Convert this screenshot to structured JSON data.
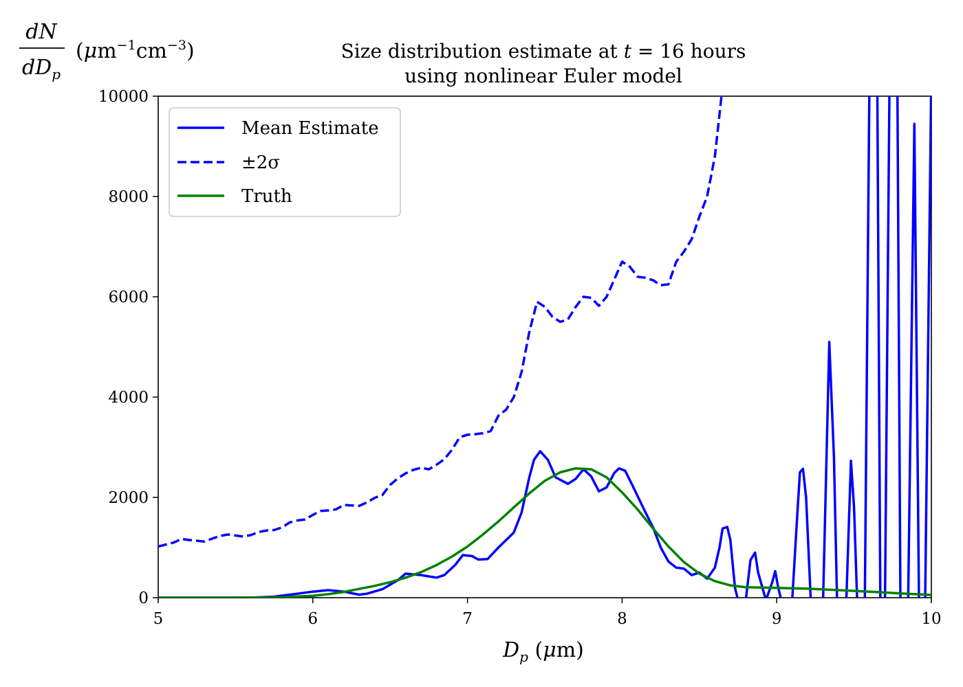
{
  "chart_data": {
    "type": "line",
    "title": "Size distribution estimate at t = 16 hours",
    "subtitle": "using nonlinear Euler model",
    "xlabel": "D_p (μm)",
    "ylabel": "dN/dD_p (μm⁻¹cm⁻³)",
    "xlim": [
      5,
      10
    ],
    "ylim": [
      0,
      10000
    ],
    "x_ticks": [
      5,
      6,
      7,
      8,
      9,
      10
    ],
    "y_ticks": [
      0,
      2000,
      4000,
      6000,
      8000,
      10000
    ],
    "grid": false,
    "legend_position": "top-left",
    "colors": {
      "mean": "#0000ff",
      "band": "#0000ff",
      "truth": "#008000"
    },
    "series": [
      {
        "name": "Mean Estimate",
        "style": "solid",
        "color": "#0000ff",
        "points": [
          [
            5.0,
            0
          ],
          [
            5.3,
            0
          ],
          [
            5.6,
            0
          ],
          [
            5.75,
            20
          ],
          [
            5.9,
            80
          ],
          [
            6.0,
            120
          ],
          [
            6.1,
            150
          ],
          [
            6.2,
            120
          ],
          [
            6.3,
            60
          ],
          [
            6.35,
            80
          ],
          [
            6.45,
            170
          ],
          [
            6.55,
            350
          ],
          [
            6.6,
            480
          ],
          [
            6.7,
            450
          ],
          [
            6.8,
            400
          ],
          [
            6.85,
            450
          ],
          [
            6.92,
            650
          ],
          [
            6.97,
            850
          ],
          [
            7.03,
            830
          ],
          [
            7.07,
            760
          ],
          [
            7.13,
            770
          ],
          [
            7.2,
            1000
          ],
          [
            7.3,
            1300
          ],
          [
            7.35,
            1700
          ],
          [
            7.4,
            2400
          ],
          [
            7.43,
            2750
          ],
          [
            7.47,
            2920
          ],
          [
            7.52,
            2750
          ],
          [
            7.57,
            2400
          ],
          [
            7.65,
            2270
          ],
          [
            7.7,
            2370
          ],
          [
            7.75,
            2560
          ],
          [
            7.8,
            2420
          ],
          [
            7.85,
            2120
          ],
          [
            7.9,
            2200
          ],
          [
            7.95,
            2490
          ],
          [
            7.98,
            2580
          ],
          [
            8.02,
            2530
          ],
          [
            8.07,
            2220
          ],
          [
            8.15,
            1710
          ],
          [
            8.2,
            1400
          ],
          [
            8.25,
            1000
          ],
          [
            8.3,
            720
          ],
          [
            8.35,
            600
          ],
          [
            8.4,
            580
          ],
          [
            8.45,
            450
          ],
          [
            8.5,
            500
          ],
          [
            8.55,
            380
          ],
          [
            8.6,
            600
          ],
          [
            8.63,
            1000
          ],
          [
            8.65,
            1380
          ],
          [
            8.68,
            1410
          ],
          [
            8.7,
            1150
          ],
          [
            8.73,
            200
          ],
          [
            8.75,
            -50
          ],
          [
            8.8,
            -50
          ],
          [
            8.83,
            750
          ],
          [
            8.86,
            900
          ],
          [
            8.88,
            500
          ],
          [
            8.93,
            -50
          ],
          [
            8.97,
            300
          ],
          [
            8.99,
            530
          ],
          [
            9.01,
            200
          ],
          [
            9.03,
            -50
          ],
          [
            9.1,
            -50
          ],
          [
            9.13,
            1500
          ],
          [
            9.15,
            2500
          ],
          [
            9.17,
            2570
          ],
          [
            9.19,
            2000
          ],
          [
            9.22,
            -50
          ],
          [
            9.3,
            -50
          ],
          [
            9.34,
            5100
          ],
          [
            9.37,
            2800
          ],
          [
            9.39,
            -50
          ],
          [
            9.45,
            -50
          ],
          [
            9.48,
            2730
          ],
          [
            9.5,
            1800
          ],
          [
            9.52,
            -50
          ],
          [
            9.57,
            -50
          ],
          [
            9.6,
            10500
          ],
          [
            9.65,
            10500
          ],
          [
            9.67,
            -50
          ],
          [
            9.7,
            -50
          ],
          [
            9.73,
            10500
          ],
          [
            9.78,
            10500
          ],
          [
            9.8,
            -50
          ],
          [
            9.85,
            -50
          ],
          [
            9.89,
            9450
          ],
          [
            9.92,
            -50
          ],
          [
            9.96,
            -50
          ],
          [
            10.0,
            10500
          ]
        ]
      },
      {
        "name": "±2σ",
        "style": "dashed",
        "color": "#0000ff",
        "points": [
          [
            5.0,
            1020
          ],
          [
            5.1,
            1100
          ],
          [
            5.15,
            1170
          ],
          [
            5.2,
            1150
          ],
          [
            5.3,
            1120
          ],
          [
            5.35,
            1180
          ],
          [
            5.4,
            1230
          ],
          [
            5.45,
            1260
          ],
          [
            5.5,
            1240
          ],
          [
            5.55,
            1220
          ],
          [
            5.6,
            1250
          ],
          [
            5.65,
            1310
          ],
          [
            5.7,
            1340
          ],
          [
            5.75,
            1350
          ],
          [
            5.8,
            1400
          ],
          [
            5.85,
            1500
          ],
          [
            5.9,
            1540
          ],
          [
            5.95,
            1560
          ],
          [
            6.0,
            1650
          ],
          [
            6.05,
            1730
          ],
          [
            6.1,
            1740
          ],
          [
            6.15,
            1760
          ],
          [
            6.2,
            1850
          ],
          [
            6.25,
            1840
          ],
          [
            6.3,
            1830
          ],
          [
            6.35,
            1900
          ],
          [
            6.4,
            1990
          ],
          [
            6.45,
            2050
          ],
          [
            6.5,
            2250
          ],
          [
            6.55,
            2380
          ],
          [
            6.6,
            2480
          ],
          [
            6.65,
            2550
          ],
          [
            6.7,
            2590
          ],
          [
            6.75,
            2560
          ],
          [
            6.8,
            2650
          ],
          [
            6.85,
            2760
          ],
          [
            6.9,
            2950
          ],
          [
            6.95,
            3200
          ],
          [
            7.0,
            3250
          ],
          [
            7.05,
            3260
          ],
          [
            7.1,
            3280
          ],
          [
            7.15,
            3320
          ],
          [
            7.2,
            3630
          ],
          [
            7.25,
            3750
          ],
          [
            7.3,
            4000
          ],
          [
            7.35,
            4500
          ],
          [
            7.4,
            5300
          ],
          [
            7.45,
            5900
          ],
          [
            7.5,
            5800
          ],
          [
            7.55,
            5600
          ],
          [
            7.6,
            5500
          ],
          [
            7.65,
            5550
          ],
          [
            7.7,
            5800
          ],
          [
            7.75,
            6000
          ],
          [
            7.8,
            5980
          ],
          [
            7.85,
            5820
          ],
          [
            7.9,
            6000
          ],
          [
            7.95,
            6350
          ],
          [
            8.0,
            6700
          ],
          [
            8.05,
            6600
          ],
          [
            8.1,
            6400
          ],
          [
            8.15,
            6380
          ],
          [
            8.2,
            6330
          ],
          [
            8.25,
            6230
          ],
          [
            8.3,
            6250
          ],
          [
            8.35,
            6700
          ],
          [
            8.4,
            6900
          ],
          [
            8.45,
            7150
          ],
          [
            8.5,
            7600
          ],
          [
            8.55,
            8000
          ],
          [
            8.6,
            8800
          ],
          [
            8.65,
            10200
          ]
        ]
      },
      {
        "name": "Truth",
        "style": "solid",
        "color": "#008000",
        "points": [
          [
            5.0,
            0
          ],
          [
            5.5,
            0
          ],
          [
            5.8,
            8
          ],
          [
            6.0,
            38
          ],
          [
            6.1,
            70
          ],
          [
            6.2,
            115
          ],
          [
            6.3,
            175
          ],
          [
            6.4,
            235
          ],
          [
            6.5,
            310
          ],
          [
            6.6,
            400
          ],
          [
            6.7,
            510
          ],
          [
            6.8,
            650
          ],
          [
            6.9,
            820
          ],
          [
            7.0,
            1020
          ],
          [
            7.1,
            1260
          ],
          [
            7.2,
            1520
          ],
          [
            7.3,
            1800
          ],
          [
            7.4,
            2080
          ],
          [
            7.5,
            2330
          ],
          [
            7.6,
            2500
          ],
          [
            7.7,
            2580
          ],
          [
            7.8,
            2560
          ],
          [
            7.9,
            2400
          ],
          [
            8.0,
            2100
          ],
          [
            8.1,
            1760
          ],
          [
            8.2,
            1380
          ],
          [
            8.3,
            1020
          ],
          [
            8.4,
            710
          ],
          [
            8.5,
            480
          ],
          [
            8.6,
            330
          ],
          [
            8.7,
            245
          ],
          [
            8.8,
            210
          ],
          [
            9.0,
            195
          ],
          [
            9.2,
            180
          ],
          [
            9.4,
            150
          ],
          [
            9.6,
            120
          ],
          [
            9.8,
            85
          ],
          [
            10.0,
            55
          ]
        ]
      }
    ]
  }
}
